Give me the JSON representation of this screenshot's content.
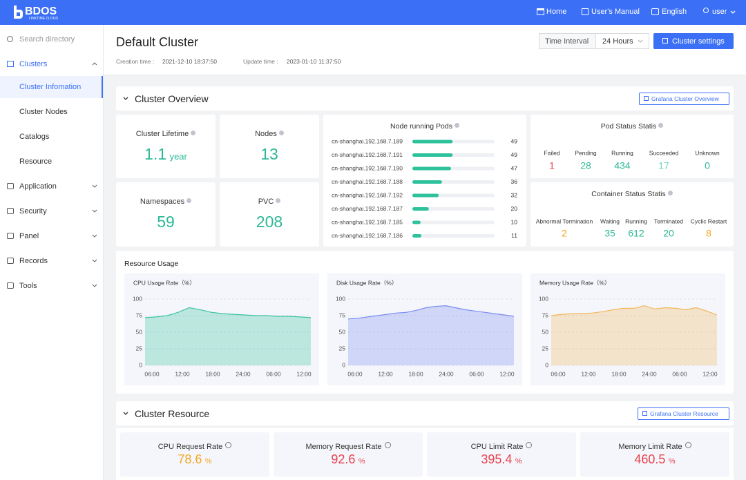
{
  "header": {
    "logo": "BDOS",
    "logo_sub": "LINKTIME CLOUD",
    "nav": [
      "Home",
      "User's Manual",
      "English",
      "user"
    ]
  },
  "sidebar": {
    "search": "Search directory",
    "menu": [
      {
        "label": "Clusters",
        "children": [
          "Cluster Infomation",
          "Cluster Nodes",
          "Catalogs",
          "Resource"
        ]
      },
      {
        "label": "Application"
      },
      {
        "label": "Security"
      },
      {
        "label": "Panel"
      },
      {
        "label": "Records"
      },
      {
        "label": "Tools"
      }
    ]
  },
  "page": {
    "title": "Default Cluster",
    "creation_label": "Creation time :",
    "creation": "2021-12-10 18:37:50",
    "update_label": "Update time :",
    "update": "2023-01-10 11:37:50",
    "interval_label": "Time Interval",
    "interval": "24 Hours",
    "settings": "Cluster settings"
  },
  "overview": {
    "title": "Cluster Overview",
    "link": "Grafana Cluster Overview",
    "stats": [
      {
        "label": "Cluster Lifetime",
        "value": 1.1,
        "unit": "year"
      },
      {
        "label": "Nodes",
        "value": 13
      },
      {
        "label": "Namespaces",
        "value": 59
      },
      {
        "label": "PVC",
        "value": 208
      }
    ],
    "pods": {
      "type": "bar",
      "title": "Node running Pods",
      "categories": [
        "cn-shanghai.192.168.7.189",
        "cn-shanghai.192.168.7.191",
        "cn-shanghai.192.168.7.190",
        "cn-shanghai.192.168.7.188",
        "cn-shanghai.192.168.7.192",
        "cn-shanghai.192.168.7.187",
        "cn-shanghai.192.168.7.185",
        "cn-shanghai.192.168.7.186"
      ],
      "values": [
        49,
        49,
        47,
        36,
        32,
        20,
        10,
        11
      ],
      "xlim": [
        0,
        100
      ],
      "color": "#2ec29c"
    },
    "pod_status": {
      "title": "Pod Status Statis",
      "labels": [
        "Failed",
        "Pending",
        "Running",
        "Succeeded",
        "Unknown"
      ],
      "values": [
        1,
        28,
        434,
        17,
        0
      ],
      "colors": [
        "#e8414c",
        "#2bb896",
        "#2bb896",
        "#6fd6bb",
        "#2bb896"
      ]
    },
    "container_status": {
      "title": "Container Status Statis",
      "labels": [
        "Abnormal Termination",
        "Waiting",
        "Running",
        "Terminated",
        "Cyclic Restart"
      ],
      "values": [
        2,
        35,
        612,
        20,
        8
      ],
      "colors": [
        "#f5a623",
        "#2bb896",
        "#2bb896",
        "#2bb896",
        "#f5a623"
      ]
    }
  },
  "resource_usage": {
    "title": "Resource Usage",
    "charts": [
      {
        "type": "area",
        "title": "CPU Usage Rate（%）",
        "values": [
          72,
          73,
          75,
          80,
          87,
          84,
          80,
          78,
          77,
          76,
          75,
          75,
          74,
          74,
          73,
          72
        ],
        "xticks": [
          "06:00",
          "12:00",
          "18:00",
          "24:00",
          "06:00",
          "12:00"
        ],
        "ylim": [
          0,
          100
        ],
        "yticks": [
          0,
          25,
          50,
          75,
          100
        ],
        "color": "#3cc3a0"
      },
      {
        "type": "area",
        "title": "Disk Usage Rate（%）",
        "values": [
          70,
          71,
          73,
          75,
          77,
          79,
          80,
          83,
          87,
          89,
          90,
          87,
          84,
          82,
          80,
          78,
          76,
          74
        ],
        "xticks": [
          "06:00",
          "12:00",
          "18:00",
          "24:00",
          "06:00",
          "12:00"
        ],
        "ylim": [
          0,
          100
        ],
        "yticks": [
          0,
          25,
          50,
          75,
          100
        ],
        "color": "#7b8cf0"
      },
      {
        "type": "area",
        "title": "Memory Usage Rate（%）",
        "values": [
          75,
          77,
          78,
          78,
          79,
          81,
          84,
          86,
          86,
          90,
          85,
          87,
          86,
          84,
          87,
          82,
          76
        ],
        "xticks": [
          "06:00",
          "12:00",
          "18:00",
          "24:00",
          "06:00",
          "12:00"
        ],
        "ylim": [
          0,
          100
        ],
        "yticks": [
          0,
          25,
          50,
          75,
          100
        ],
        "color": "#f2b65a"
      }
    ]
  },
  "cluster_resource": {
    "title": "Cluster Resource",
    "link": "Grafana Cluster Resource",
    "items": [
      {
        "label": "CPU Request Rate",
        "value": 78.6,
        "unit": "%",
        "color": "#f5a623"
      },
      {
        "label": "Memory Request Rate",
        "value": 92.6,
        "unit": "%",
        "color": "#e8414c"
      },
      {
        "label": "CPU Limit Rate",
        "value": 395.4,
        "unit": "%",
        "color": "#e8414c"
      },
      {
        "label": "Memory Limit Rate",
        "value": 460.5,
        "unit": "%",
        "color": "#e8414c"
      }
    ]
  }
}
